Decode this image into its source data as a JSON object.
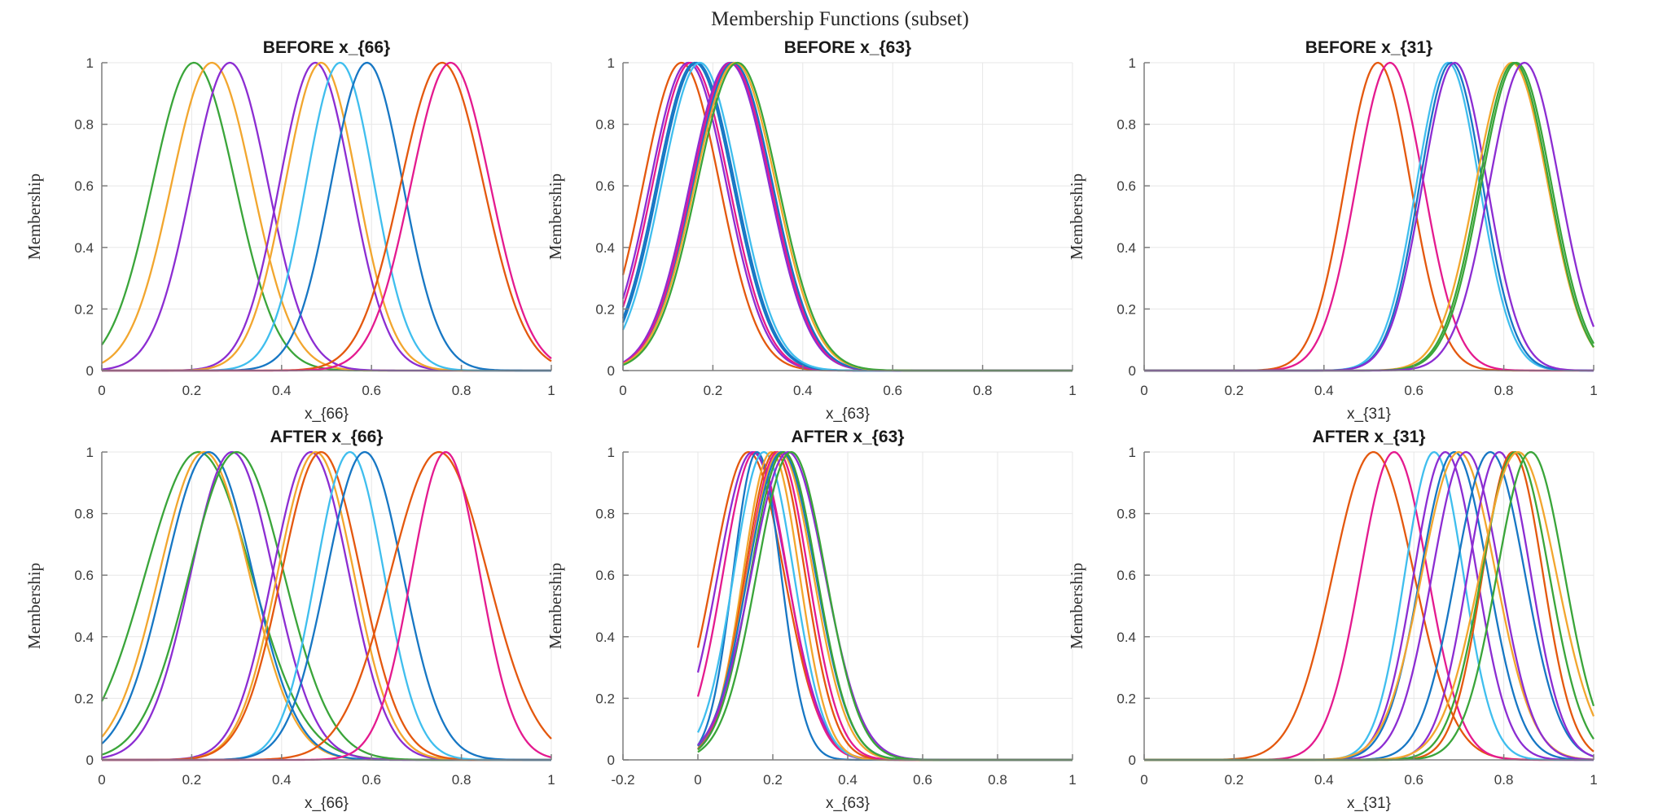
{
  "figure": {
    "title": "Membership Functions (subset)"
  },
  "chart_data": {
    "type": "line",
    "curve_model": "gaussian",
    "grid": true,
    "legend": false,
    "palette": {
      "orange": "#e4580e",
      "magenta": "#e41a8f",
      "purple": "#8c2dd2",
      "blue": "#1777c4",
      "cyan": "#3fbeee",
      "amber": "#f2a62e",
      "green": "#3aa53a"
    },
    "subplots": [
      {
        "title": "BEFORE x_{66}",
        "xlabel": "x_{66}",
        "ylabel": "Membership",
        "xlim": [
          0,
          1
        ],
        "ylim": [
          0,
          1
        ],
        "domain": [
          0,
          1
        ],
        "xticks": {
          "values": [
            0,
            0.2,
            0.4,
            0.6,
            0.8,
            1
          ],
          "labels": [
            "0",
            "0.2",
            "0.4",
            "0.6",
            "0.8",
            "1"
          ]
        },
        "yticks": {
          "values": [
            0,
            0.2,
            0.4,
            0.6,
            0.8,
            1
          ],
          "labels": [
            "0",
            "0.2",
            "0.4",
            "0.6",
            "0.8",
            "1"
          ]
        },
        "curves": [
          {
            "color": "green",
            "center": 0.205,
            "sigma": 0.092
          },
          {
            "color": "amber",
            "center": 0.245,
            "sigma": 0.09
          },
          {
            "color": "purple",
            "center": 0.285,
            "sigma": 0.085
          },
          {
            "color": "purple",
            "center": 0.475,
            "sigma": 0.08
          },
          {
            "color": "amber",
            "center": 0.488,
            "sigma": 0.08
          },
          {
            "color": "cyan",
            "center": 0.53,
            "sigma": 0.076
          },
          {
            "color": "blue",
            "center": 0.59,
            "sigma": 0.08
          },
          {
            "color": "orange",
            "center": 0.757,
            "sigma": 0.092
          },
          {
            "color": "magenta",
            "center": 0.776,
            "sigma": 0.088
          }
        ]
      },
      {
        "title": "BEFORE x_{63}",
        "xlabel": "x_{63}",
        "ylabel": "Membership",
        "xlim": [
          0,
          1
        ],
        "ylim": [
          0,
          1
        ],
        "domain": [
          0,
          1
        ],
        "xticks": {
          "values": [
            0,
            0.2,
            0.4,
            0.6,
            0.8,
            1
          ],
          "labels": [
            "0",
            "0.2",
            "0.4",
            "0.6",
            "0.8",
            "1"
          ]
        },
        "yticks": {
          "values": [
            0,
            0.2,
            0.4,
            0.6,
            0.8,
            1
          ],
          "labels": [
            "0",
            "0.2",
            "0.4",
            "0.6",
            "0.8",
            "1"
          ]
        },
        "curves": [
          {
            "color": "orange",
            "center": 0.13,
            "sigma": 0.085
          },
          {
            "color": "purple",
            "center": 0.145,
            "sigma": 0.085
          },
          {
            "color": "magenta",
            "center": 0.151,
            "sigma": 0.085
          },
          {
            "color": "blue",
            "center": 0.16,
            "sigma": 0.085
          },
          {
            "color": "blue",
            "center": 0.164,
            "sigma": 0.085
          },
          {
            "color": "cyan",
            "center": 0.171,
            "sigma": 0.085
          },
          {
            "color": "purple",
            "center": 0.237,
            "sigma": 0.088
          },
          {
            "color": "magenta",
            "center": 0.241,
            "sigma": 0.088
          },
          {
            "color": "blue",
            "center": 0.245,
            "sigma": 0.088
          },
          {
            "color": "amber",
            "center": 0.25,
            "sigma": 0.09
          },
          {
            "color": "green",
            "center": 0.255,
            "sigma": 0.09
          }
        ]
      },
      {
        "title": "BEFORE x_{31}",
        "xlabel": "x_{31}",
        "ylabel": "Membership",
        "xlim": [
          0,
          1
        ],
        "ylim": [
          0,
          1
        ],
        "domain": [
          0,
          1
        ],
        "xticks": {
          "values": [
            0,
            0.2,
            0.4,
            0.6,
            0.8,
            1
          ],
          "labels": [
            "0",
            "0.2",
            "0.4",
            "0.6",
            "0.8",
            "1"
          ]
        },
        "yticks": {
          "values": [
            0,
            0.2,
            0.4,
            0.6,
            0.8,
            1
          ],
          "labels": [
            "0",
            "0.2",
            "0.4",
            "0.6",
            "0.8",
            "1"
          ]
        },
        "curves": [
          {
            "color": "orange",
            "center": 0.52,
            "sigma": 0.073
          },
          {
            "color": "magenta",
            "center": 0.547,
            "sigma": 0.075
          },
          {
            "color": "cyan",
            "center": 0.676,
            "sigma": 0.07
          },
          {
            "color": "blue",
            "center": 0.683,
            "sigma": 0.07
          },
          {
            "color": "purple",
            "center": 0.691,
            "sigma": 0.072
          },
          {
            "color": "amber",
            "center": 0.818,
            "sigma": 0.08
          },
          {
            "color": "green",
            "center": 0.823,
            "sigma": 0.078
          },
          {
            "color": "green",
            "center": 0.828,
            "sigma": 0.078
          },
          {
            "color": "purple",
            "center": 0.846,
            "sigma": 0.078
          }
        ]
      },
      {
        "title": "AFTER x_{66}",
        "xlabel": "x_{66}",
        "ylabel": "Membership",
        "xlim": [
          0,
          1
        ],
        "ylim": [
          0,
          1
        ],
        "domain": [
          0,
          1
        ],
        "xticks": {
          "values": [
            0,
            0.2,
            0.4,
            0.6,
            0.8,
            1
          ],
          "labels": [
            "0",
            "0.2",
            "0.4",
            "0.6",
            "0.8",
            "1"
          ]
        },
        "yticks": {
          "values": [
            0,
            0.2,
            0.4,
            0.6,
            0.8,
            1
          ],
          "labels": [
            "0",
            "0.2",
            "0.4",
            "0.6",
            "0.8",
            "1"
          ]
        },
        "curves": [
          {
            "color": "green",
            "center": 0.215,
            "sigma": 0.118
          },
          {
            "color": "amber",
            "center": 0.228,
            "sigma": 0.1
          },
          {
            "color": "blue",
            "center": 0.238,
            "sigma": 0.098
          },
          {
            "color": "purple",
            "center": 0.29,
            "sigma": 0.092
          },
          {
            "color": "green",
            "center": 0.3,
            "sigma": 0.105
          },
          {
            "color": "purple",
            "center": 0.465,
            "sigma": 0.085
          },
          {
            "color": "amber",
            "center": 0.476,
            "sigma": 0.085
          },
          {
            "color": "orange",
            "center": 0.488,
            "sigma": 0.088
          },
          {
            "color": "cyan",
            "center": 0.552,
            "sigma": 0.076
          },
          {
            "color": "blue",
            "center": 0.585,
            "sigma": 0.085
          },
          {
            "color": "orange",
            "center": 0.75,
            "sigma": 0.108
          },
          {
            "color": "magenta",
            "center": 0.765,
            "sigma": 0.076
          }
        ]
      },
      {
        "title": "AFTER x_{63}",
        "xlabel": "x_{63}",
        "ylabel": "Membership",
        "xlim": [
          -0.2,
          1
        ],
        "ylim": [
          0,
          1
        ],
        "domain": [
          0,
          1
        ],
        "xticks": {
          "values": [
            -0.2,
            0,
            0.2,
            0.4,
            0.6,
            0.8,
            1
          ],
          "labels": [
            "-0.2",
            "0",
            "0.2",
            "0.4",
            "0.6",
            "0.8",
            "1"
          ]
        },
        "yticks": {
          "values": [
            0,
            0.2,
            0.4,
            0.6,
            0.8,
            1
          ],
          "labels": [
            "0",
            "0.2",
            "0.4",
            "0.6",
            "0.8",
            "1"
          ]
        },
        "curves": [
          {
            "color": "orange",
            "center": 0.135,
            "sigma": 0.095
          },
          {
            "color": "purple",
            "center": 0.146,
            "sigma": 0.092
          },
          {
            "color": "magenta",
            "center": 0.153,
            "sigma": 0.086
          },
          {
            "color": "blue",
            "center": 0.158,
            "sigma": 0.064
          },
          {
            "color": "cyan",
            "center": 0.176,
            "sigma": 0.08
          },
          {
            "color": "amber",
            "center": 0.196,
            "sigma": 0.075
          },
          {
            "color": "orange",
            "center": 0.206,
            "sigma": 0.08
          },
          {
            "color": "magenta",
            "center": 0.213,
            "sigma": 0.082
          },
          {
            "color": "amber",
            "center": 0.22,
            "sigma": 0.088
          },
          {
            "color": "blue",
            "center": 0.224,
            "sigma": 0.09
          },
          {
            "color": "green",
            "center": 0.229,
            "sigma": 0.088
          },
          {
            "color": "purple",
            "center": 0.241,
            "sigma": 0.098
          },
          {
            "color": "green",
            "center": 0.249,
            "sigma": 0.092
          }
        ]
      },
      {
        "title": "AFTER x_{31}",
        "xlabel": "x_{31}",
        "ylabel": "Membership",
        "xlim": [
          0,
          1
        ],
        "ylim": [
          0,
          1
        ],
        "domain": [
          0,
          1
        ],
        "xticks": {
          "values": [
            0,
            0.2,
            0.4,
            0.6,
            0.8,
            1
          ],
          "labels": [
            "0",
            "0.2",
            "0.4",
            "0.6",
            "0.8",
            "1"
          ]
        },
        "yticks": {
          "values": [
            0,
            0.2,
            0.4,
            0.6,
            0.8,
            1
          ],
          "labels": [
            "0",
            "0.2",
            "0.4",
            "0.6",
            "0.8",
            "1"
          ]
        },
        "curves": [
          {
            "color": "orange",
            "center": 0.51,
            "sigma": 0.09
          },
          {
            "color": "magenta",
            "center": 0.556,
            "sigma": 0.075
          },
          {
            "color": "cyan",
            "center": 0.645,
            "sigma": 0.065
          },
          {
            "color": "purple",
            "center": 0.67,
            "sigma": 0.07
          },
          {
            "color": "blue",
            "center": 0.69,
            "sigma": 0.075
          },
          {
            "color": "amber",
            "center": 0.7,
            "sigma": 0.082
          },
          {
            "color": "purple",
            "center": 0.716,
            "sigma": 0.075
          },
          {
            "color": "blue",
            "center": 0.77,
            "sigma": 0.077
          },
          {
            "color": "purple",
            "center": 0.79,
            "sigma": 0.07
          },
          {
            "color": "orange",
            "center": 0.82,
            "sigma": 0.067
          },
          {
            "color": "green",
            "center": 0.826,
            "sigma": 0.075
          },
          {
            "color": "amber",
            "center": 0.832,
            "sigma": 0.085
          },
          {
            "color": "green",
            "center": 0.86,
            "sigma": 0.075
          }
        ]
      }
    ],
    "style": {
      "grid_color": "#e7e7e7",
      "axis_color": "#7d7d7d",
      "curve_width": 2.3
    }
  }
}
